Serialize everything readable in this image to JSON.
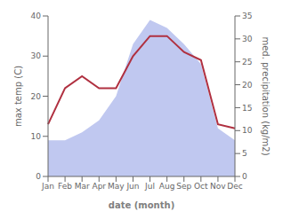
{
  "chart_data": {
    "type": "line",
    "categories": [
      "Jan",
      "Feb",
      "Mar",
      "Apr",
      "May",
      "Jun",
      "Jul",
      "Aug",
      "Sep",
      "Oct",
      "Nov",
      "Dec"
    ],
    "series": [
      {
        "type": "area",
        "color": "#c0c8f0",
        "values": [
          9,
          9,
          11,
          14,
          20,
          33,
          39,
          37,
          33,
          28,
          12,
          9
        ]
      },
      {
        "type": "line",
        "color": "#b03040",
        "values": [
          13,
          22,
          25,
          22,
          22,
          30,
          35,
          35,
          31,
          29,
          13,
          12
        ]
      }
    ],
    "xlabel": "date (month)",
    "ylabel": "max temp (C)",
    "y2label": "med. precipitation (kg/m2)",
    "ylim": [
      0,
      40
    ],
    "yticks": [
      0,
      10,
      20,
      30,
      40
    ],
    "y2lim": [
      0,
      35
    ],
    "y2ticks": [
      0,
      5,
      10,
      15,
      20,
      25,
      30,
      35
    ],
    "grid": false
  }
}
